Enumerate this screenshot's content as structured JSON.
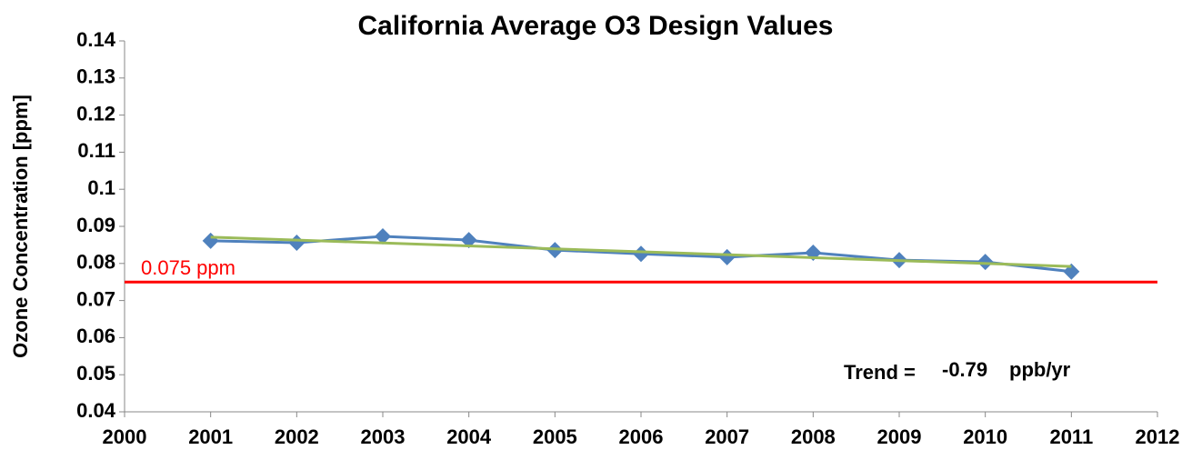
{
  "chart_data": {
    "type": "line",
    "title": "California Average O3 Design Values",
    "y_label": "Ozone Concentration [ppm]",
    "x": [
      2001,
      2002,
      2003,
      2004,
      2005,
      2006,
      2007,
      2008,
      2009,
      2010,
      2011
    ],
    "series": [
      {
        "color": "#4f81bd",
        "values": [
          0.0861,
          0.0856,
          0.0873,
          0.0863,
          0.0836,
          0.0826,
          0.0817,
          0.0829,
          0.0809,
          0.0804,
          0.0778
        ]
      }
    ],
    "trend": {
      "x": [
        2001,
        2011
      ],
      "values": [
        0.0871,
        0.0792
      ],
      "color": "#9bbb59"
    },
    "reference_line": {
      "value": 0.075,
      "label": "0.075 ppm",
      "color": "#ff0000"
    },
    "annotations": [
      "Trend =",
      "-0.79",
      "ppb/yr"
    ],
    "xlim": [
      2000,
      2012
    ],
    "xticks": [
      2000,
      2001,
      2002,
      2003,
      2004,
      2005,
      2006,
      2007,
      2008,
      2009,
      2010,
      2011,
      2012
    ],
    "ylim": [
      0.04,
      0.14
    ],
    "yticks": [
      0.04,
      0.05,
      0.06,
      0.07,
      0.08,
      0.09,
      0.1,
      0.11,
      0.12,
      0.13,
      0.14
    ],
    "grid": false
  }
}
